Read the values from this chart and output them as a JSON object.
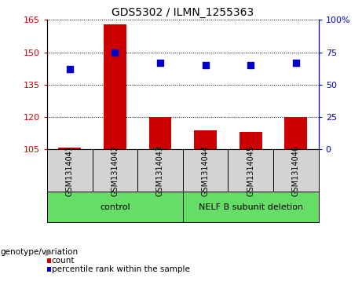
{
  "title": "GDS5302 / ILMN_1255363",
  "samples": [
    "GSM1314041",
    "GSM1314042",
    "GSM1314043",
    "GSM1314044",
    "GSM1314045",
    "GSM1314046"
  ],
  "counts": [
    106,
    163,
    120,
    114,
    113,
    120
  ],
  "percentiles": [
    62,
    75,
    67,
    65,
    65,
    67
  ],
  "ylim_left": [
    105,
    165
  ],
  "ylim_right": [
    0,
    100
  ],
  "yticks_left": [
    105,
    120,
    135,
    150,
    165
  ],
  "yticks_right": [
    0,
    25,
    50,
    75,
    100
  ],
  "ytick_labels_right": [
    "0",
    "25",
    "50",
    "75",
    "100%"
  ],
  "bar_color": "#cc0000",
  "dot_color": "#0000cc",
  "control_group": [
    0,
    1,
    2
  ],
  "nelf_group": [
    3,
    4,
    5
  ],
  "control_label": "control",
  "nelf_label": "NELF B subunit deletion",
  "group_label_prefix": "genotype/variation",
  "legend_count_label": "count",
  "legend_percentile_label": "percentile rank within the sample",
  "bg_color": "#ffffff",
  "plot_bg_color": "#ffffff",
  "tick_label_area_color": "#d3d3d3",
  "bottom_area_color": "#66dd66",
  "bar_width": 0.5,
  "title_fontsize": 10,
  "tick_fontsize": 8,
  "label_fontsize": 7,
  "group_fontsize": 8
}
